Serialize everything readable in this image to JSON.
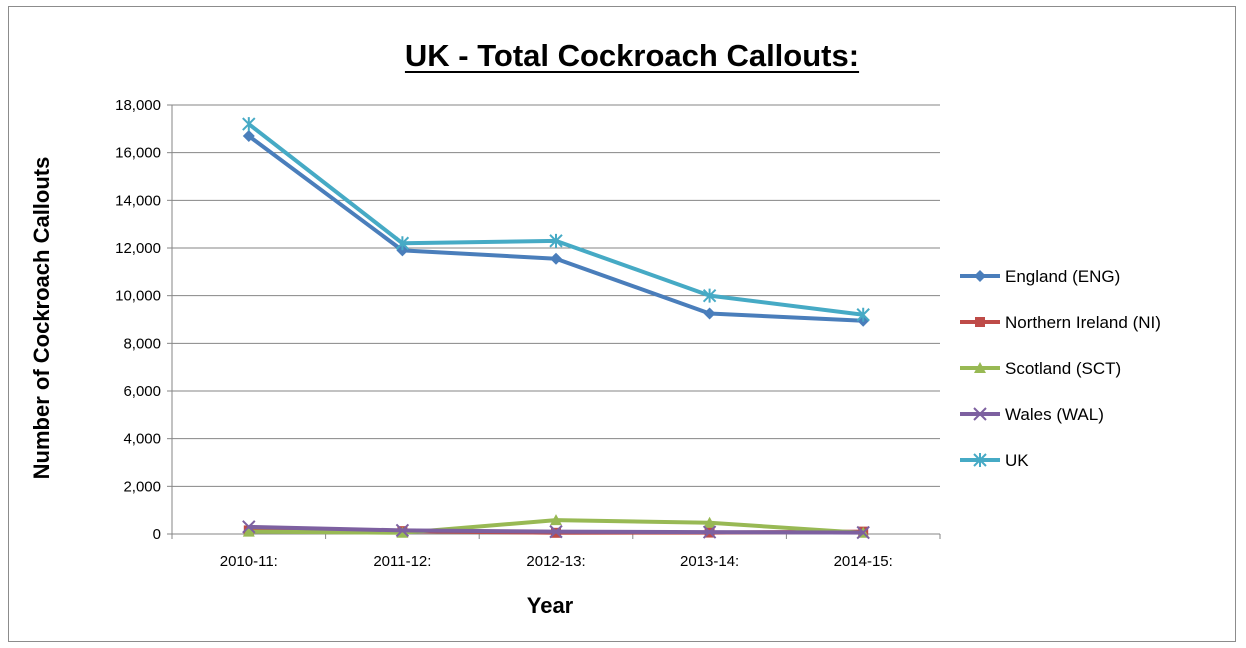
{
  "chart_data": {
    "type": "line",
    "title": "UK - Total Cockroach Callouts:",
    "xlabel": "Year",
    "ylabel": "Number of Cockroach Callouts",
    "categories": [
      "2010-11:",
      "2011-12:",
      "2012-13:",
      "2013-14:",
      "2014-15:"
    ],
    "ylim": [
      0,
      18000
    ],
    "yticks": [
      "0",
      "2,000",
      "4,000",
      "6,000",
      "8,000",
      "10,000",
      "12,000",
      "14,000",
      "16,000",
      "18,000"
    ],
    "grid": "horizontal",
    "legend_position": "right",
    "series": [
      {
        "name": "England (ENG)",
        "values": [
          16700,
          11900,
          11550,
          9250,
          8950
        ],
        "color": "#4a7ebb",
        "marker": "diamond"
      },
      {
        "name": "Northern Ireland (NI)",
        "values": [
          150,
          120,
          50,
          60,
          100
        ],
        "color": "#be4b48",
        "marker": "square"
      },
      {
        "name": "Scotland (SCT)",
        "values": [
          100,
          50,
          580,
          470,
          50
        ],
        "color": "#98b954",
        "marker": "triangle"
      },
      {
        "name": "Wales (WAL)",
        "values": [
          300,
          150,
          100,
          80,
          60
        ],
        "color": "#7d60a0",
        "marker": "x"
      },
      {
        "name": "UK",
        "values": [
          17200,
          12200,
          12300,
          10000,
          9200
        ],
        "color": "#46aac5",
        "marker": "star"
      }
    ]
  }
}
